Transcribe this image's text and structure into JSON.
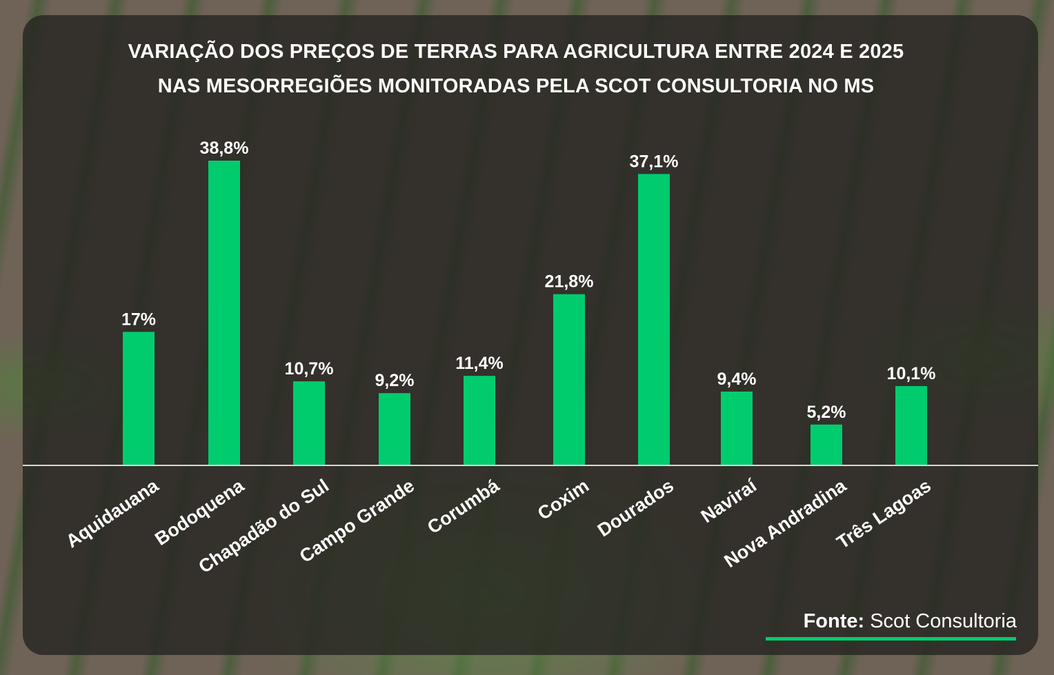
{
  "title_line1": "VARIAÇÃO DOS PREÇOS DE TERRAS PARA AGRICULTURA ENTRE 2024 E 2025",
  "title_line2": "NAS MESORREGIÕES MONITORADAS PELA SCOT CONSULTORIA NO MS",
  "source_label": "Fonte:",
  "source_value": "Scot Consultoria",
  "colors": {
    "bar": "#00cc6e",
    "text": "#ffffff",
    "baseline": "#d8d8d8"
  },
  "chart_data": {
    "type": "bar",
    "title": "VARIAÇÃO DOS PREÇOS DE TERRAS PARA AGRICULTURA ENTRE 2024 E 2025 NAS MESORREGIÕES MONITORADAS PELA SCOT CONSULTORIA NO MS",
    "categories": [
      "Aquidauana",
      "Bodoquena",
      "Chapadão do Sul",
      "Campo Grande",
      "Corumbá",
      "Coxim",
      "Dourados",
      "Naviraí",
      "Nova Andradina",
      "Três Lagoas"
    ],
    "values": [
      17,
      38.8,
      10.7,
      9.2,
      11.4,
      21.8,
      37.1,
      9.4,
      5.2,
      10.1
    ],
    "value_labels": [
      "17%",
      "38,8%",
      "10,7%",
      "9,2%",
      "11,4%",
      "21,8%",
      "37,1%",
      "9,4%",
      "5,2%",
      "10,1%"
    ],
    "xlabel": "",
    "ylabel": "",
    "ylim": [
      0,
      40
    ],
    "grid": false
  }
}
